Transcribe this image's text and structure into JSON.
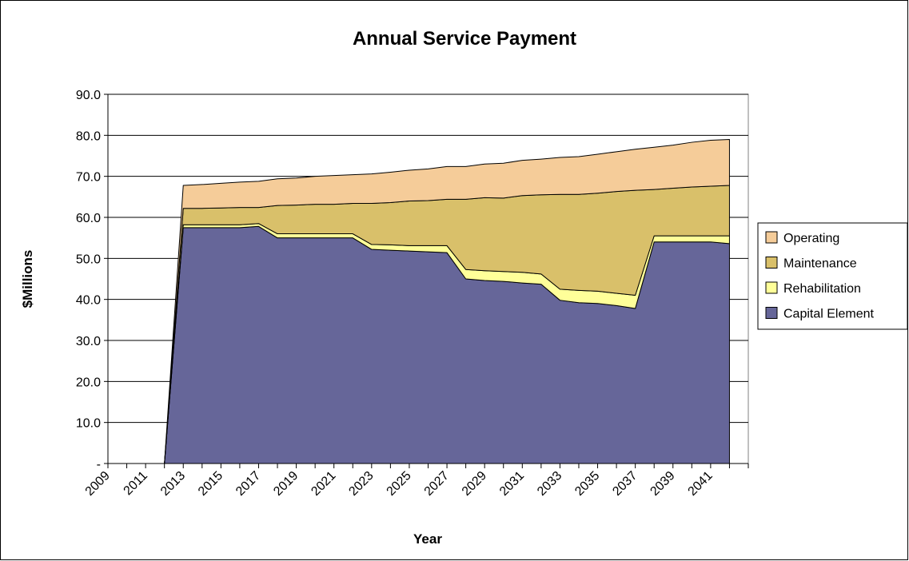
{
  "chart_data": {
    "type": "area",
    "stacked": true,
    "title": "Annual Service Payment",
    "xlabel": "Year",
    "ylabel": "$Millions",
    "ylim": [
      0,
      90
    ],
    "yticks": [
      0,
      10,
      20,
      30,
      40,
      50,
      60,
      70,
      80,
      90
    ],
    "ytick_labels": [
      "-",
      "10.0",
      "20.0",
      "30.0",
      "40.0",
      "50.0",
      "60.0",
      "70.0",
      "80.0",
      "90.0"
    ],
    "x_tick_labels": [
      "2009",
      "2011",
      "2013",
      "2015",
      "2017",
      "2019",
      "2021",
      "2023",
      "2025",
      "2027",
      "2029",
      "2031",
      "2033",
      "2035",
      "2037",
      "2039",
      "2041"
    ],
    "x": [
      2009,
      2010,
      2011,
      2012,
      2013,
      2014,
      2015,
      2016,
      2017,
      2018,
      2019,
      2020,
      2021,
      2022,
      2023,
      2024,
      2025,
      2026,
      2027,
      2028,
      2029,
      2030,
      2031,
      2032,
      2033,
      2034,
      2035,
      2036,
      2037,
      2038,
      2039,
      2040,
      2041,
      2042
    ],
    "grid": "horizontal",
    "legend": "right",
    "series": [
      {
        "name": "Capital Element",
        "color": "#666699",
        "values": [
          0,
          0,
          0,
          0,
          57.5,
          57.5,
          57.5,
          57.5,
          57.8,
          55.0,
          55.0,
          55.0,
          55.0,
          55.0,
          52.2,
          52.0,
          51.8,
          51.6,
          51.4,
          45.0,
          44.6,
          44.4,
          44.0,
          43.7,
          39.8,
          39.2,
          39.0,
          38.5,
          37.8,
          54.0,
          54.0,
          54.0,
          54.0,
          53.6
        ]
      },
      {
        "name": "Rehabilitation",
        "color": "#ffff99",
        "values": [
          0,
          0,
          0,
          0,
          0.7,
          0.7,
          0.7,
          0.7,
          0.7,
          1.0,
          1.0,
          1.0,
          1.0,
          1.0,
          1.2,
          1.3,
          1.3,
          1.5,
          1.7,
          2.3,
          2.4,
          2.4,
          2.6,
          2.5,
          2.7,
          3.0,
          3.0,
          3.0,
          3.2,
          1.5,
          1.5,
          1.5,
          1.5,
          1.9
        ]
      },
      {
        "name": "Maintenance",
        "color": "#d9c06a",
        "values": [
          0,
          0,
          0,
          0,
          4.0,
          4.0,
          4.1,
          4.2,
          3.9,
          6.9,
          7.0,
          7.2,
          7.2,
          7.4,
          10.0,
          10.3,
          10.9,
          11.0,
          11.3,
          17.1,
          17.8,
          17.9,
          18.7,
          19.3,
          23.1,
          23.4,
          23.9,
          24.8,
          25.6,
          11.3,
          11.6,
          11.9,
          12.1,
          12.3
        ]
      },
      {
        "name": "Operating",
        "color": "#f5cc99",
        "values": [
          0,
          0,
          0,
          0,
          5.6,
          5.8,
          6.0,
          6.2,
          6.4,
          6.5,
          6.6,
          6.8,
          7.0,
          7.0,
          7.2,
          7.4,
          7.5,
          7.7,
          8.0,
          8.0,
          8.2,
          8.5,
          8.6,
          8.7,
          9.0,
          9.2,
          9.5,
          9.7,
          10.0,
          10.3,
          10.5,
          10.9,
          11.2,
          11.2
        ]
      }
    ]
  }
}
